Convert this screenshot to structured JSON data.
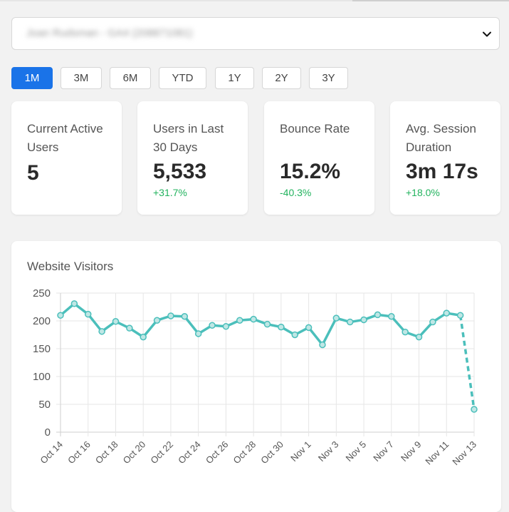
{
  "property_select": {
    "value": "Joan Rudsman - GA4 (208871081)"
  },
  "ranges": [
    {
      "label": "1M",
      "active": true
    },
    {
      "label": "3M",
      "active": false
    },
    {
      "label": "6M",
      "active": false
    },
    {
      "label": "YTD",
      "active": false
    },
    {
      "label": "1Y",
      "active": false
    },
    {
      "label": "2Y",
      "active": false
    },
    {
      "label": "3Y",
      "active": false
    }
  ],
  "cards": [
    {
      "label": "Current Active Users",
      "value": "5",
      "change": ""
    },
    {
      "label": "Users in Last 30 Days",
      "value": "5,533",
      "change": "+31.7%"
    },
    {
      "label": "Bounce Rate",
      "value": "15.2%",
      "change": "-40.3%"
    },
    {
      "label": "Avg. Session Duration",
      "value": "3m 17s",
      "change": "+18.0%"
    }
  ],
  "colors": {
    "accent": "#1a73e8",
    "positive": "#22b35e",
    "line": "#4bbfbb"
  },
  "chart_data": {
    "type": "line",
    "title": "Website Visitors",
    "xlabel": "",
    "ylabel": "",
    "ylim": [
      0,
      250
    ],
    "yticks": [
      0,
      50,
      100,
      150,
      200,
      250
    ],
    "grid": true,
    "x": [
      "Oct 14",
      "Oct 15",
      "Oct 16",
      "Oct 17",
      "Oct 18",
      "Oct 19",
      "Oct 20",
      "Oct 21",
      "Oct 22",
      "Oct 23",
      "Oct 24",
      "Oct 25",
      "Oct 26",
      "Oct 27",
      "Oct 28",
      "Oct 29",
      "Oct 30",
      "Oct 31",
      "Nov 1",
      "Nov 2",
      "Nov 3",
      "Nov 4",
      "Nov 5",
      "Nov 6",
      "Nov 7",
      "Nov 8",
      "Nov 9",
      "Nov 10",
      "Nov 11",
      "Nov 12",
      "Nov 13"
    ],
    "xtick_labels": [
      "Oct 14",
      "Oct 16",
      "Oct 18",
      "Oct 20",
      "Oct 22",
      "Oct 24",
      "Oct 26",
      "Oct 28",
      "Oct 30",
      "Nov 1",
      "Nov 3",
      "Nov 5",
      "Nov 7",
      "Nov 9",
      "Nov 11",
      "Nov 13"
    ],
    "series": [
      {
        "name": "Visitors",
        "values": [
          210,
          231,
          212,
          181,
          199,
          187,
          171,
          201,
          209,
          208,
          177,
          192,
          190,
          201,
          203,
          194,
          189,
          175,
          188,
          157,
          205,
          198,
          202,
          211,
          208,
          180,
          171,
          198,
          214,
          210,
          41
        ],
        "last_segment_dashed": true
      }
    ]
  }
}
